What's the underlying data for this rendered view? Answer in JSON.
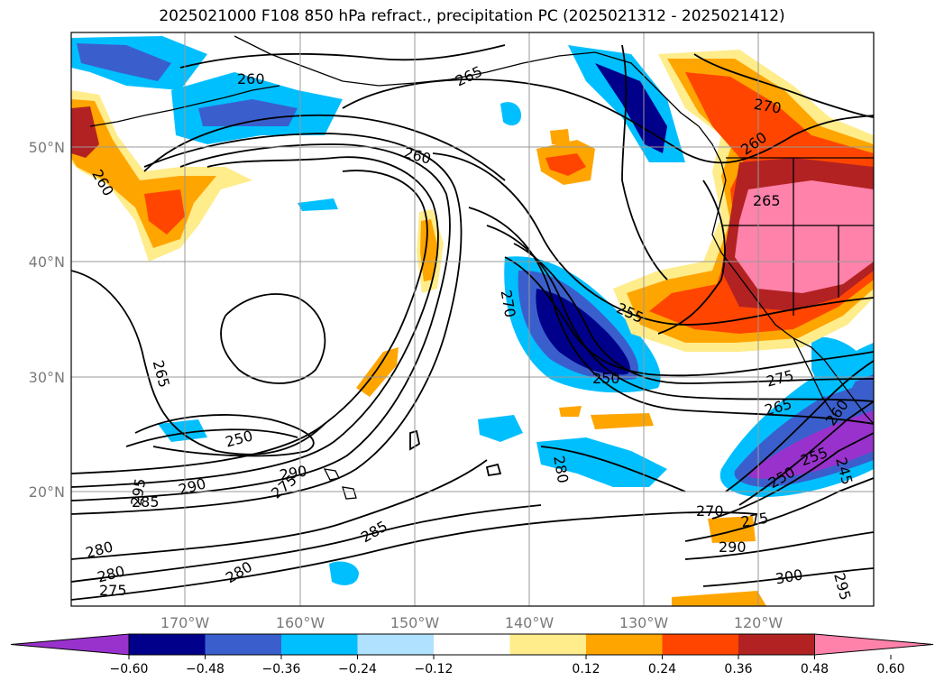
{
  "title": "2025021000 F108 850 hPa refract., precipitation PC (2025021312 - 2025021412)",
  "map": {
    "lat_labels": [
      "50°N",
      "40°N",
      "30°N",
      "20°N"
    ],
    "lon_labels": [
      "170°W",
      "160°W",
      "150°W",
      "140°W",
      "130°W",
      "120°W"
    ],
    "contour_labels": [
      "260",
      "265",
      "260",
      "270",
      "260",
      "260",
      "265",
      "270",
      "255",
      "250",
      "275",
      "265",
      "265",
      "260",
      "250",
      "285",
      "290",
      "295",
      "275",
      "290",
      "280",
      "280",
      "285",
      "280",
      "275",
      "280",
      "270",
      "275",
      "290",
      "300",
      "295",
      "250",
      "255",
      "245"
    ]
  },
  "colorbar": {
    "tick_labels": [
      "−0.60",
      "−0.48",
      "−0.36",
      "−0.24",
      "−0.12",
      "0.12",
      "0.24",
      "0.36",
      "0.48",
      "0.60"
    ],
    "colors": [
      "#9932CC",
      "#00008B",
      "#3A5FCD",
      "#00BFFF",
      "#B0E2FF",
      "#FFFFFF",
      "#FFEC8B",
      "#FFA500",
      "#FF4500",
      "#B22222",
      "#FF82AB"
    ]
  }
}
